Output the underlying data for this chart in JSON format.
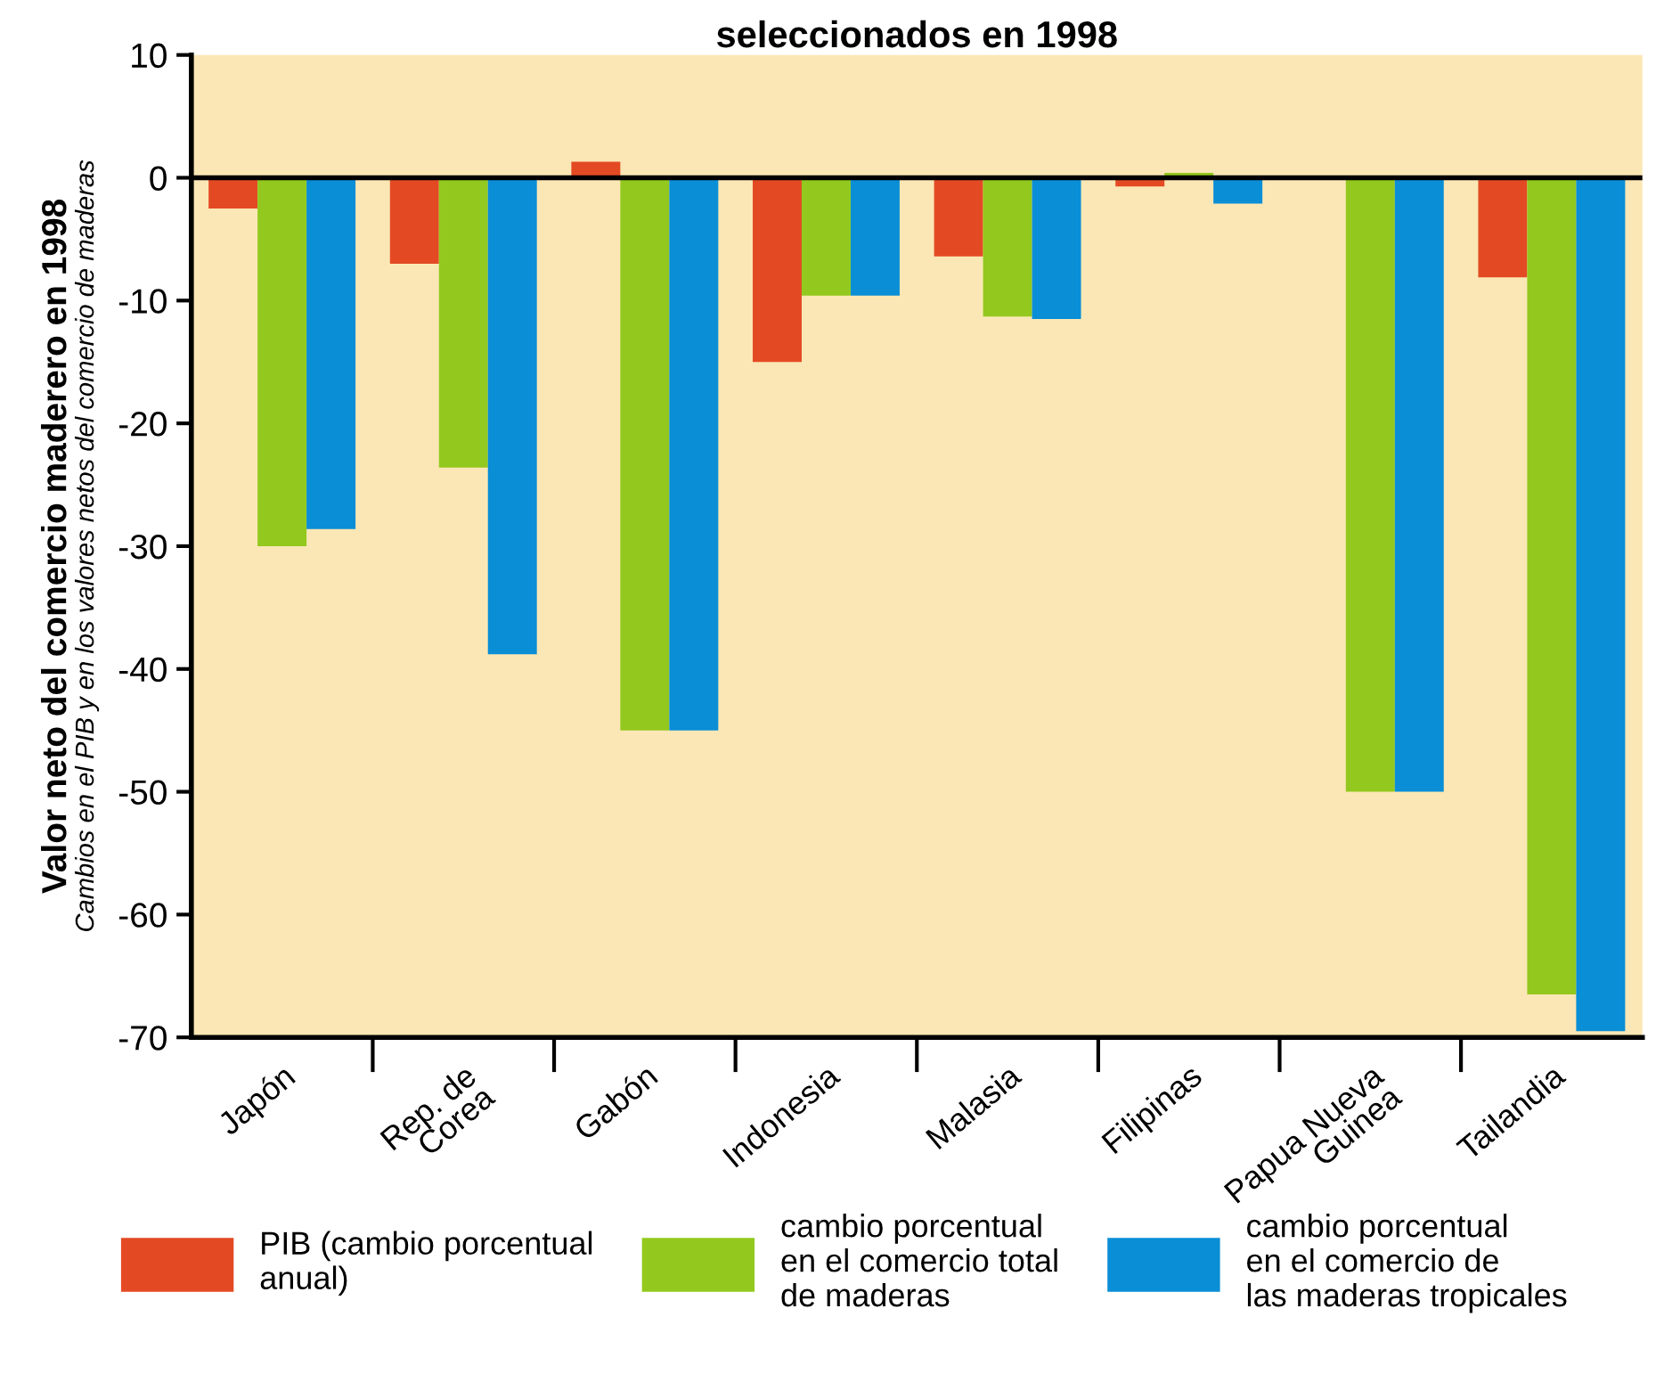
{
  "chart_data": {
    "type": "bar",
    "title": "seleccionados en 1998",
    "ylabel": "Valor neto del comercio maderero en 1998",
    "annotations": [
      "Cambios en el PIB y en los valores netos del comercio de maderas"
    ],
    "categories": [
      "Japón",
      "Rep. de\nCorea",
      "Gabón",
      "Indonesia",
      "Malasia",
      "Filipinas",
      "Papua Nueva\nGuinea",
      "Tailandia"
    ],
    "series": [
      {
        "name": "PIB (cambio porcentual\nanual)",
        "color": "#e34a24",
        "values": [
          -2.5,
          -7,
          1.3,
          -15,
          -6.4,
          -0.7,
          null,
          -8.1
        ]
      },
      {
        "name": "cambio porcentual\nen el comercio total\nde maderas",
        "color": "#93c91e",
        "values": [
          -30,
          -23.6,
          -45,
          -9.6,
          -11.3,
          0.4,
          -50,
          -66.5
        ]
      },
      {
        "name": "cambio porcentual\nen el comercio de\nlas maderas tropicales",
        "color": "#0a8ed6",
        "values": [
          -28.6,
          -38.8,
          -45,
          -9.6,
          -11.5,
          -2.1,
          -50,
          -69.5
        ]
      }
    ],
    "ylim": [
      -70,
      10
    ],
    "yticks": [
      10,
      0,
      -10,
      -20,
      -30,
      -40,
      -50,
      -60,
      -70
    ],
    "ref_lines": [
      {
        "axis": "y",
        "value": 0,
        "color": "#000000"
      }
    ],
    "grid": false,
    "legend": "bottom"
  }
}
